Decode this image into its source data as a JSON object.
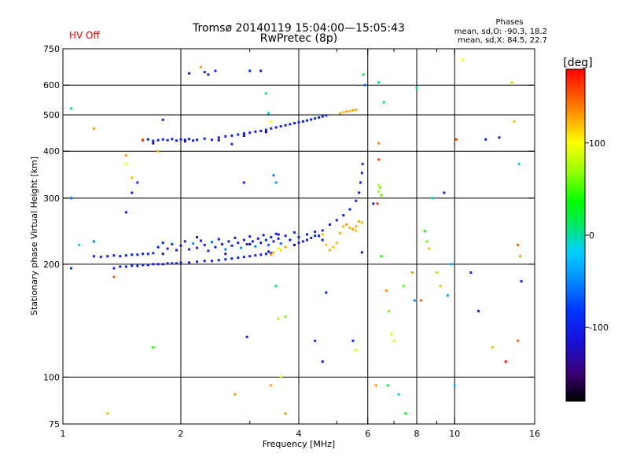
{
  "header": {
    "title_line1": "Tromsø 20140119 15:04:00—15:05:43",
    "title_line2": "RwPretec (8p)",
    "status": "HV Off",
    "status_color": "#e00000",
    "stats_title": "Phases",
    "stats_line1": "mean, sd,O: -90.3, 18.2",
    "stats_line2": "mean, sd,X:  84.5, 22.7"
  },
  "chart_data": {
    "type": "scatter",
    "title": "Tromsø 20140119 15:04:00—15:05:43",
    "subtitle": "RwPretec (8p)",
    "xlabel": "Frequency [MHz]",
    "ylabel": "Stationary phase Virtual Height [km]",
    "xscale": "log",
    "yscale": "log",
    "xlim": [
      1,
      16
    ],
    "ylim": [
      75,
      750
    ],
    "xticks": [
      1,
      2,
      4,
      6,
      8,
      10,
      16
    ],
    "xtick_labels": [
      "1",
      "2",
      "4",
      "6",
      "8",
      "10",
      "16"
    ],
    "x_minor_ticks": [
      3,
      5,
      7,
      9
    ],
    "yticks": [
      75,
      100,
      200,
      300,
      400,
      500,
      600,
      750
    ],
    "ytick_labels": [
      "75",
      "100",
      "200",
      "300",
      "400",
      "500",
      "600",
      "750"
    ],
    "x_gridlines": [
      2,
      4,
      6,
      8,
      10
    ],
    "y_gridlines": [
      100,
      200,
      300,
      400,
      500,
      600
    ],
    "colorbar": {
      "label": "[deg]",
      "min": -180,
      "max": 180,
      "ticks": [
        100,
        0,
        -100
      ],
      "tick_labels": [
        "100",
        "0",
        "-100"
      ]
    },
    "points": [
      [
        1.35,
        195,
        -100
      ],
      [
        1.4,
        197,
        -105
      ],
      [
        1.45,
        197,
        -98
      ],
      [
        1.5,
        198,
        -102
      ],
      [
        1.55,
        198,
        -100
      ],
      [
        1.6,
        199,
        -95
      ],
      [
        1.65,
        199,
        -102
      ],
      [
        1.7,
        200,
        -100
      ],
      [
        1.75,
        200,
        -98
      ],
      [
        1.8,
        200,
        -103
      ],
      [
        1.85,
        201,
        -100
      ],
      [
        1.9,
        201,
        -97
      ],
      [
        1.95,
        201,
        -101
      ],
      [
        2.0,
        202,
        -100
      ],
      [
        2.1,
        202,
        -102
      ],
      [
        2.2,
        203,
        -99
      ],
      [
        2.3,
        204,
        -100
      ],
      [
        2.4,
        204,
        -101
      ],
      [
        2.5,
        205,
        -98
      ],
      [
        2.6,
        206,
        -100
      ],
      [
        2.7,
        207,
        -102
      ],
      [
        2.8,
        208,
        -100
      ],
      [
        2.9,
        209,
        -99
      ],
      [
        3.0,
        210,
        -101
      ],
      [
        3.1,
        211,
        -100
      ],
      [
        3.2,
        212,
        -103
      ],
      [
        3.3,
        213,
        -100
      ],
      [
        3.4,
        214,
        -98
      ],
      [
        1.2,
        210,
        -100
      ],
      [
        1.25,
        209,
        -102
      ],
      [
        1.3,
        210,
        -98
      ],
      [
        1.35,
        211,
        -100
      ],
      [
        1.4,
        210,
        -101
      ],
      [
        1.45,
        211,
        -99
      ],
      [
        1.5,
        212,
        -100
      ],
      [
        1.55,
        212,
        -102
      ],
      [
        1.6,
        213,
        -100
      ],
      [
        1.65,
        213,
        -98
      ],
      [
        1.7,
        214,
        -100
      ],
      [
        1.75,
        222,
        -100
      ],
      [
        1.8,
        228,
        -95
      ],
      [
        1.85,
        220,
        -102
      ],
      [
        1.9,
        226,
        -80
      ],
      [
        1.95,
        218,
        -100
      ],
      [
        2.0,
        224,
        -105
      ],
      [
        2.05,
        230,
        -100
      ],
      [
        2.1,
        219,
        -98
      ],
      [
        2.15,
        227,
        -40
      ],
      [
        2.2,
        221,
        -100
      ],
      [
        2.25,
        231,
        -102
      ],
      [
        2.3,
        225,
        -100
      ],
      [
        2.35,
        217,
        -98
      ],
      [
        2.4,
        229,
        -60
      ],
      [
        2.45,
        222,
        -100
      ],
      [
        2.5,
        233,
        -101
      ],
      [
        2.55,
        226,
        -100
      ],
      [
        2.6,
        219,
        -55
      ],
      [
        2.65,
        230,
        -100
      ],
      [
        2.7,
        224,
        -102
      ],
      [
        2.75,
        235,
        -100
      ],
      [
        2.8,
        228,
        -98
      ],
      [
        2.85,
        221,
        -45
      ],
      [
        2.9,
        232,
        -100
      ],
      [
        2.95,
        226,
        -103
      ],
      [
        3.0,
        237,
        -100
      ],
      [
        3.05,
        230,
        -99
      ],
      [
        3.1,
        223,
        -50
      ],
      [
        3.15,
        234,
        -100
      ],
      [
        3.2,
        228,
        -101
      ],
      [
        3.25,
        239,
        -100
      ],
      [
        3.3,
        232,
        -98
      ],
      [
        3.35,
        225,
        -65
      ],
      [
        3.4,
        236,
        -100
      ],
      [
        3.45,
        230,
        -102
      ],
      [
        3.5,
        241,
        -100
      ],
      [
        3.55,
        234,
        -99
      ],
      [
        3.6,
        227,
        -58
      ],
      [
        3.7,
        238,
        -100
      ],
      [
        3.8,
        232,
        -101
      ],
      [
        3.9,
        243,
        -100
      ],
      [
        4.0,
        236,
        -98
      ],
      [
        4.1,
        230,
        -100
      ],
      [
        4.2,
        240,
        -102
      ],
      [
        4.3,
        235,
        -100
      ],
      [
        4.4,
        244,
        -95
      ],
      [
        4.5,
        238,
        -100
      ],
      [
        4.6,
        232,
        -101
      ],
      [
        1.8,
        213,
        -140
      ],
      [
        2.2,
        236,
        -130
      ],
      [
        2.6,
        213,
        -135
      ],
      [
        3.0,
        226,
        -140
      ],
      [
        3.35,
        216,
        -130
      ],
      [
        3.55,
        240,
        -135
      ],
      [
        3.9,
        225,
        -140
      ],
      [
        4.0,
        228,
        -100
      ],
      [
        4.2,
        232,
        -98
      ],
      [
        4.4,
        238,
        -100
      ],
      [
        4.6,
        246,
        -95
      ],
      [
        4.8,
        255,
        -100
      ],
      [
        5.0,
        262,
        -102
      ],
      [
        5.2,
        270,
        -100
      ],
      [
        5.4,
        280,
        -98
      ],
      [
        5.6,
        295,
        -100
      ],
      [
        5.7,
        310,
        -102
      ],
      [
        5.75,
        330,
        -100
      ],
      [
        5.8,
        350,
        -105
      ],
      [
        5.82,
        370,
        -100
      ],
      [
        1.6,
        428,
        -100
      ],
      [
        1.65,
        430,
        -98
      ],
      [
        1.7,
        426,
        -100
      ],
      [
        1.75,
        428,
        -102
      ],
      [
        1.8,
        430,
        -100
      ],
      [
        1.85,
        428,
        -99
      ],
      [
        1.9,
        431,
        -100
      ],
      [
        1.95,
        427,
        -101
      ],
      [
        2.0,
        430,
        -100
      ],
      [
        2.05,
        429,
        -98
      ],
      [
        2.1,
        431,
        -100
      ],
      [
        2.15,
        427,
        -102
      ],
      [
        2.2,
        429,
        -100
      ],
      [
        2.3,
        432,
        -98
      ],
      [
        2.4,
        429,
        -100
      ],
      [
        2.5,
        435,
        -101
      ],
      [
        2.6,
        438,
        -100
      ],
      [
        2.7,
        440,
        -99
      ],
      [
        2.8,
        443,
        -100
      ],
      [
        2.9,
        446,
        -102
      ],
      [
        3.0,
        448,
        -100
      ],
      [
        3.1,
        451,
        -98
      ],
      [
        3.2,
        453,
        -100
      ],
      [
        3.3,
        456,
        -101
      ],
      [
        3.4,
        460,
        -100
      ],
      [
        3.5,
        463,
        -99
      ],
      [
        3.6,
        466,
        -100
      ],
      [
        3.7,
        469,
        -102
      ],
      [
        3.8,
        472,
        -100
      ],
      [
        3.9,
        475,
        -98
      ],
      [
        4.0,
        478,
        -100
      ],
      [
        4.1,
        480,
        -101
      ],
      [
        4.2,
        483,
        -100
      ],
      [
        4.3,
        486,
        -99
      ],
      [
        4.4,
        489,
        -100
      ],
      [
        4.5,
        492,
        -102
      ],
      [
        4.6,
        495,
        -100
      ],
      [
        4.7,
        498,
        -98
      ],
      [
        1.7,
        420,
        -140
      ],
      [
        2.05,
        425,
        -135
      ],
      [
        2.5,
        428,
        -140
      ],
      [
        2.9,
        440,
        -130
      ],
      [
        3.3,
        450,
        -140
      ],
      [
        5.1,
        505,
        125
      ],
      [
        5.2,
        508,
        120
      ],
      [
        5.3,
        510,
        130
      ],
      [
        5.4,
        512,
        122
      ],
      [
        5.5,
        514,
        128
      ],
      [
        5.6,
        516,
        125
      ],
      [
        4.6,
        240,
        120
      ],
      [
        4.7,
        225,
        115
      ],
      [
        4.8,
        218,
        125
      ],
      [
        4.9,
        222,
        118
      ],
      [
        5.0,
        228,
        120
      ],
      [
        5.1,
        242,
        130
      ],
      [
        5.2,
        252,
        125
      ],
      [
        5.3,
        255,
        128
      ],
      [
        5.4,
        250,
        122
      ],
      [
        5.5,
        248,
        130
      ],
      [
        5.6,
        252,
        125
      ],
      [
        5.7,
        260,
        128
      ],
      [
        5.8,
        258,
        120
      ],
      [
        5.6,
        245,
        118
      ],
      [
        6.4,
        312,
        70
      ],
      [
        6.45,
        320,
        60
      ],
      [
        6.4,
        325,
        75
      ],
      [
        6.5,
        305,
        55
      ],
      [
        6.35,
        290,
        160
      ],
      [
        6.4,
        380,
        160
      ],
      [
        6.4,
        420,
        140
      ],
      [
        3.4,
        212,
        130
      ],
      [
        3.45,
        215,
        120
      ],
      [
        3.6,
        218,
        110
      ],
      [
        3.55,
        220,
        90
      ],
      [
        3.7,
        222,
        128
      ],
      [
        1.05,
        520,
        0
      ],
      [
        1.05,
        300,
        -60
      ],
      [
        1.1,
        225,
        -20
      ],
      [
        1.05,
        195,
        -80
      ],
      [
        1.2,
        460,
        130
      ],
      [
        1.2,
        230,
        -50
      ],
      [
        1.3,
        80,
        120
      ],
      [
        1.35,
        185,
        150
      ],
      [
        1.45,
        390,
        130
      ],
      [
        1.45,
        370,
        100
      ],
      [
        1.5,
        340,
        120
      ],
      [
        1.5,
        310,
        -100
      ],
      [
        1.45,
        275,
        -100
      ],
      [
        1.55,
        330,
        -100
      ],
      [
        1.6,
        430,
        150
      ],
      [
        1.7,
        120,
        40
      ],
      [
        1.75,
        400,
        120
      ],
      [
        1.8,
        485,
        -100
      ],
      [
        2.1,
        645,
        -100
      ],
      [
        2.25,
        670,
        130
      ],
      [
        2.3,
        650,
        -100
      ],
      [
        2.35,
        640,
        -100
      ],
      [
        2.45,
        655,
        -100
      ],
      [
        2.7,
        418,
        -100
      ],
      [
        2.75,
        90,
        130
      ],
      [
        2.9,
        330,
        -100
      ],
      [
        2.95,
        128,
        -100
      ],
      [
        3.0,
        655,
        -100
      ],
      [
        3.2,
        655,
        -120
      ],
      [
        3.3,
        570,
        10
      ],
      [
        3.35,
        505,
        -20
      ],
      [
        3.4,
        480,
        100
      ],
      [
        3.4,
        95,
        130
      ],
      [
        3.45,
        345,
        -60
      ],
      [
        3.5,
        330,
        -40
      ],
      [
        3.5,
        175,
        20
      ],
      [
        3.55,
        143,
        80
      ],
      [
        3.6,
        100,
        80
      ],
      [
        3.7,
        145,
        60
      ],
      [
        3.7,
        80,
        130
      ],
      [
        4.4,
        125,
        -100
      ],
      [
        4.6,
        110,
        -100
      ],
      [
        4.7,
        168,
        -100
      ],
      [
        5.5,
        125,
        -100
      ],
      [
        5.6,
        118,
        90
      ],
      [
        5.8,
        215,
        -110
      ],
      [
        5.85,
        640,
        20
      ],
      [
        5.9,
        600,
        -60
      ],
      [
        6.2,
        290,
        -100
      ],
      [
        6.3,
        95,
        130
      ],
      [
        6.4,
        610,
        0
      ],
      [
        6.5,
        210,
        40
      ],
      [
        6.6,
        540,
        20
      ],
      [
        6.7,
        170,
        130
      ],
      [
        6.75,
        95,
        20
      ],
      [
        6.8,
        150,
        60
      ],
      [
        6.9,
        130,
        80
      ],
      [
        7.0,
        125,
        80
      ],
      [
        7.2,
        90,
        -20
      ],
      [
        7.4,
        175,
        50
      ],
      [
        7.5,
        80,
        40
      ],
      [
        7.8,
        190,
        130
      ],
      [
        7.9,
        160,
        -50
      ],
      [
        8.0,
        590,
        0
      ],
      [
        8.2,
        160,
        150
      ],
      [
        8.4,
        245,
        40
      ],
      [
        8.5,
        230,
        60
      ],
      [
        8.6,
        220,
        120
      ],
      [
        8.8,
        300,
        -10
      ],
      [
        9.0,
        190,
        70
      ],
      [
        9.2,
        175,
        120
      ],
      [
        9.4,
        310,
        -100
      ],
      [
        9.6,
        165,
        -40
      ],
      [
        9.8,
        200,
        -30
      ],
      [
        10.0,
        95,
        -10
      ],
      [
        10.1,
        430,
        160
      ],
      [
        10.5,
        700,
        100
      ],
      [
        11.0,
        190,
        -100
      ],
      [
        11.5,
        150,
        -100
      ],
      [
        12.0,
        430,
        -100
      ],
      [
        12.5,
        120,
        120
      ],
      [
        13.0,
        435,
        -110
      ],
      [
        13.5,
        110,
        170
      ],
      [
        14.0,
        610,
        120
      ],
      [
        14.2,
        480,
        120
      ],
      [
        14.5,
        225,
        150
      ],
      [
        14.6,
        370,
        -10
      ],
      [
        14.7,
        210,
        130
      ],
      [
        14.8,
        180,
        -100
      ],
      [
        14.5,
        125,
        150
      ]
    ]
  }
}
